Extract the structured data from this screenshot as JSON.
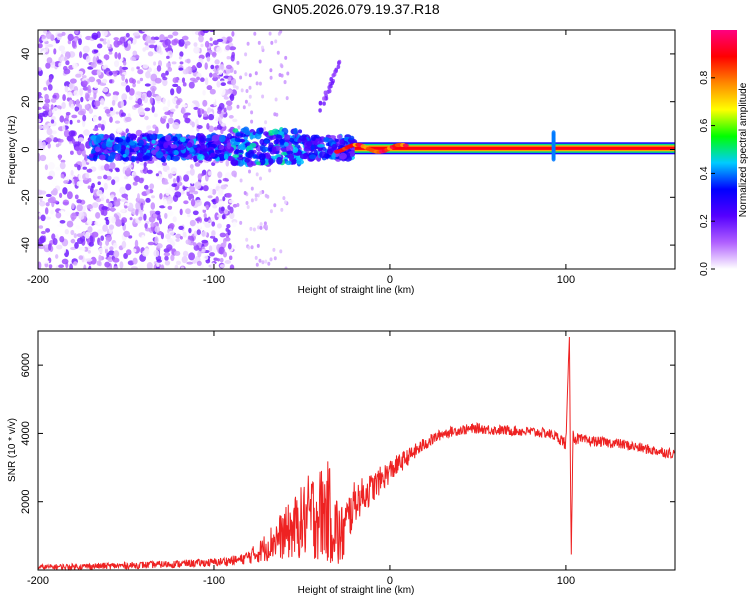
{
  "title": "GN05.2026.079.19.37.R18",
  "chart_data": [
    {
      "type": "heatmap",
      "xlabel": "Height of straight line (km)",
      "ylabel": "Frequency (Hz)",
      "xlim": [
        -200,
        162
      ],
      "ylim": [
        -50,
        50
      ],
      "x_ticks": [
        -200,
        -100,
        0,
        100
      ],
      "x_tick_labels": [
        "-200",
        "-100",
        "0",
        "100"
      ],
      "y_ticks": [
        -40,
        -20,
        0,
        20,
        40
      ],
      "y_tick_labels": [
        "-40",
        "-20",
        "0",
        "20",
        "40"
      ],
      "grid": false,
      "description_series": [
        {
          "name": "carrier_line",
          "x_start": -20,
          "x_end": 162,
          "frequency": 0.5,
          "amplitude": 1.0
        },
        {
          "name": "dense_noise",
          "x_start": -200,
          "x_end": -88,
          "frequency_spread": [
            -50,
            50
          ],
          "amplitude_range": [
            0.0,
            0.2
          ]
        },
        {
          "name": "signal_core",
          "x_start": -170,
          "x_end": -20,
          "frequency_spread": [
            -5,
            7
          ],
          "amplitude_range": [
            0.15,
            0.45
          ]
        },
        {
          "name": "spike",
          "x": 93,
          "frequency_spread": [
            -4,
            7
          ],
          "amplitude": 0.4
        }
      ],
      "colorbar": {
        "label": "Normalized spectral amplitude",
        "range": [
          0,
          1
        ],
        "ticks": [
          0.0,
          0.2,
          0.4,
          0.6,
          0.8
        ],
        "tick_labels": [
          "0.0",
          "0.2",
          "0.4",
          "0.6",
          "0.8"
        ],
        "colors": [
          "#ffffff",
          "#b060ff",
          "#5500ff",
          "#0000ff",
          "#00ccff",
          "#00ff00",
          "#ffff00",
          "#ff8800",
          "#ff0000",
          "#ff0080"
        ]
      }
    },
    {
      "type": "line",
      "xlabel": "Height of straight line (km)",
      "ylabel": "SNR (10 * v/v)",
      "xlim": [
        -200,
        162
      ],
      "ylim": [
        0,
        7000
      ],
      "x_ticks": [
        -200,
        -100,
        0,
        100
      ],
      "x_tick_labels": [
        "-200",
        "-100",
        "0",
        "100"
      ],
      "y_ticks": [
        2000,
        4000,
        6000
      ],
      "y_tick_labels": [
        "2000",
        "4000",
        "6000"
      ],
      "grid": false,
      "color": "#ee2222",
      "series": [
        {
          "name": "SNR",
          "x": [
            -200,
            -150,
            -120,
            -100,
            -85,
            -75,
            -65,
            -55,
            -45,
            -35,
            -28,
            -20,
            -10,
            0,
            10,
            20,
            30,
            40,
            50,
            60,
            70,
            80,
            90,
            95,
            100,
            102,
            103,
            104,
            106,
            110,
            120,
            130,
            140,
            150,
            162
          ],
          "y": [
            80,
            130,
            180,
            220,
            300,
            500,
            900,
            1200,
            1600,
            1700,
            900,
            2000,
            2400,
            2900,
            3300,
            3700,
            4000,
            4100,
            4150,
            4100,
            4080,
            4050,
            4000,
            3900,
            3700,
            6900,
            300,
            3900,
            3850,
            3800,
            3750,
            3700,
            3600,
            3500,
            3400
          ],
          "noise_amplitude": [
            80,
            100,
            110,
            120,
            150,
            300,
            600,
            900,
            1300,
            1500,
            1000,
            600,
            450,
            350,
            250,
            200,
            150,
            150,
            150,
            150,
            150,
            150,
            150,
            150,
            200,
            0,
            0,
            250,
            180,
            150,
            150,
            150,
            150,
            150,
            150
          ]
        }
      ]
    }
  ]
}
